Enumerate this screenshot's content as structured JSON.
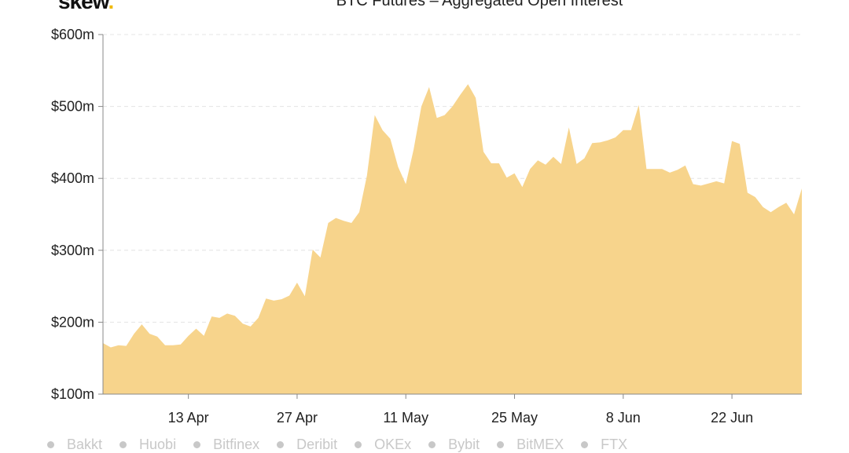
{
  "logo": {
    "text": "skew",
    "dot": "."
  },
  "chart_data": {
    "type": "area",
    "title": "BTC Futures – Aggregated Open Interest",
    "xlabel": "",
    "ylabel": "",
    "ylim": [
      100,
      600
    ],
    "y_ticks": [
      {
        "v": 100,
        "label": "$100m"
      },
      {
        "v": 200,
        "label": "$200m"
      },
      {
        "v": 300,
        "label": "$300m"
      },
      {
        "v": 400,
        "label": "$400m"
      },
      {
        "v": 500,
        "label": "$500m"
      },
      {
        "v": 600,
        "label": "$600m"
      }
    ],
    "x_ticks": [
      "13 Apr",
      "27 Apr",
      "11 May",
      "25 May",
      "8 Jun",
      "22 Jun"
    ],
    "grid": "horizontal dashed",
    "color": "#f7d48c",
    "unit": "$m",
    "x": [
      "2 Apr",
      "3 Apr",
      "4 Apr",
      "5 Apr",
      "6 Apr",
      "7 Apr",
      "8 Apr",
      "9 Apr",
      "10 Apr",
      "11 Apr",
      "12 Apr",
      "13 Apr",
      "14 Apr",
      "15 Apr",
      "16 Apr",
      "17 Apr",
      "18 Apr",
      "19 Apr",
      "20 Apr",
      "21 Apr",
      "22 Apr",
      "23 Apr",
      "24 Apr",
      "25 Apr",
      "26 Apr",
      "27 Apr",
      "28 Apr",
      "29 Apr",
      "30 Apr",
      "1 May",
      "2 May",
      "3 May",
      "4 May",
      "5 May",
      "6 May",
      "7 May",
      "8 May",
      "9 May",
      "10 May",
      "11 May",
      "12 May",
      "13 May",
      "14 May",
      "15 May",
      "16 May",
      "17 May",
      "18 May",
      "19 May",
      "20 May",
      "21 May",
      "22 May",
      "23 May",
      "24 May",
      "25 May",
      "26 May",
      "27 May",
      "28 May",
      "29 May",
      "30 May",
      "31 May",
      "1 Jun",
      "2 Jun",
      "3 Jun",
      "4 Jun",
      "5 Jun",
      "6 Jun",
      "7 Jun",
      "8 Jun",
      "9 Jun",
      "10 Jun",
      "11 Jun",
      "12 Jun",
      "13 Jun",
      "14 Jun",
      "15 Jun",
      "16 Jun",
      "17 Jun",
      "18 Jun",
      "19 Jun",
      "20 Jun",
      "21 Jun",
      "22 Jun",
      "23 Jun",
      "24 Jun",
      "25 Jun",
      "26 Jun",
      "27 Jun",
      "28 Jun",
      "29 Jun",
      "30 Jun",
      "1 Jul"
    ],
    "values": [
      171,
      165,
      168,
      167,
      184,
      197,
      184,
      180,
      168,
      168,
      169,
      181,
      191,
      181,
      208,
      206,
      212,
      209,
      198,
      194,
      206,
      233,
      230,
      232,
      237,
      255,
      236,
      301,
      290,
      338,
      345,
      341,
      338,
      353,
      404,
      488,
      467,
      455,
      416,
      392,
      440,
      500,
      527,
      484,
      488,
      500,
      516,
      531,
      512,
      437,
      421,
      421,
      401,
      407,
      388,
      413,
      425,
      419,
      430,
      420,
      471,
      420,
      428,
      449,
      450,
      453,
      457,
      467,
      467,
      502,
      413,
      413,
      413,
      408,
      412,
      418,
      392,
      390,
      393,
      396,
      393,
      452,
      448,
      380,
      374,
      360,
      353,
      360,
      366,
      350,
      386
    ],
    "legend": [
      "Bakkt",
      "Huobi",
      "Bitfinex",
      "Deribit",
      "OKEx",
      "Bybit",
      "BitMEX",
      "FTX"
    ],
    "legend_placement": "bottom"
  }
}
